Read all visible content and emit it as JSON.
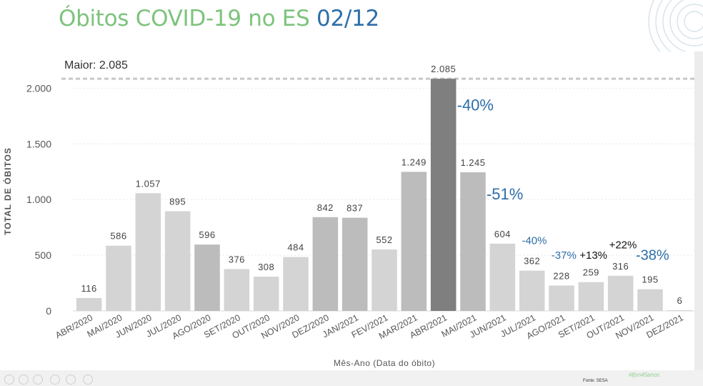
{
  "header": {
    "title_main": "Óbitos COVID-19 no ES",
    "title_date": "02/12"
  },
  "footer": {
    "source": "Fonte: SESA",
    "hashtag": "#fjsn45anos"
  },
  "colors": {
    "title_green": "#7dc37d",
    "title_blue": "#2e6ea8",
    "bar_light": "#d4d4d4",
    "bar_mid": "#bcbcbc",
    "bar_max": "#7f7f7f",
    "annotation_blue": "#2e6ea8"
  },
  "chart_data": {
    "type": "bar",
    "ylabel": "TOTAL DE ÓBITOS",
    "xlabel": "Mês-Ano (Data do óbito)",
    "max_label": "Maior: 2.085",
    "ylim": [
      0,
      2150
    ],
    "yticks": [
      0,
      500,
      1000,
      1500,
      2000
    ],
    "ytick_labels": [
      "0",
      "500",
      "1.000",
      "1.500",
      "2.000"
    ],
    "reference_line": 2085,
    "categories": [
      "ABR/2020",
      "MAI/2020",
      "JUN/2020",
      "JUL/2020",
      "AGO/2020",
      "SET/2020",
      "OUT/2020",
      "NOV/2020",
      "DEZ/2020",
      "JAN/2021",
      "FEV/2021",
      "MAR/2021",
      "ABR/2021",
      "MAI/2021",
      "JUN/2021",
      "JUL/2021",
      "AGO/2021",
      "SET/2021",
      "OUT/2021",
      "NOV/2021",
      "DEZ/2021"
    ],
    "values": [
      116,
      586,
      1057,
      895,
      596,
      376,
      308,
      484,
      842,
      837,
      552,
      1249,
      2085,
      1245,
      604,
      362,
      228,
      259,
      316,
      195,
      6
    ],
    "value_labels": [
      "116",
      "586",
      "1.057",
      "895",
      "596",
      "376",
      "308",
      "484",
      "842",
      "837",
      "552",
      "1.249",
      "2.085",
      "1.245",
      "604",
      "362",
      "228",
      "259",
      "316",
      "195",
      "6"
    ],
    "annotations": [
      {
        "text": "-40%",
        "color": "#2e6ea8",
        "size": "large",
        "anchor_value": 1800,
        "after_category": "ABR/2021"
      },
      {
        "text": "-51%",
        "color": "#2e6ea8",
        "size": "large",
        "anchor_value": 1000,
        "after_category": "MAI/2021"
      },
      {
        "text": "-40%",
        "color": "#2e6ea8",
        "size": "small",
        "anchor_value": 600,
        "after_category": "JUN/2021"
      },
      {
        "text": "-37%",
        "color": "#2e6ea8",
        "size": "small",
        "anchor_value": 470,
        "after_category": "JUL/2021"
      },
      {
        "text": "+13%",
        "color": "#111111",
        "size": "small",
        "anchor_value": 470,
        "after_category": "AGO/2021"
      },
      {
        "text": "+22%",
        "color": "#111111",
        "size": "small",
        "anchor_value": 560,
        "after_category": "SET/2021"
      },
      {
        "text": "-38%",
        "color": "#2e6ea8",
        "size": "medium",
        "anchor_value": 460,
        "after_category": "OUT/2021"
      }
    ]
  }
}
